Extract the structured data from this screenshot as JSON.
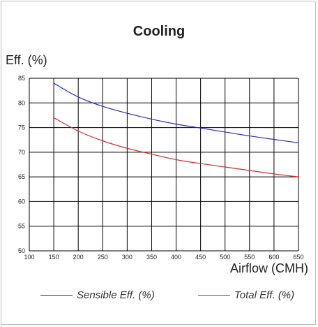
{
  "chart_data": {
    "type": "line",
    "title": "Cooling",
    "ylabel": "Eff. (%)",
    "xlabel": "Airflow (CMH)",
    "xlim": [
      100,
      650
    ],
    "ylim": [
      50,
      85
    ],
    "xticks": [
      100,
      150,
      200,
      250,
      300,
      350,
      400,
      450,
      500,
      550,
      600,
      650
    ],
    "yticks": [
      50,
      55,
      60,
      65,
      70,
      75,
      80,
      85
    ],
    "grid": true,
    "legend": "bottom",
    "series": [
      {
        "name": "Sensible Eff. (%)",
        "color": "#2a2ad4",
        "x": [
          150,
          200,
          250,
          300,
          350,
          400,
          450,
          500,
          550,
          600,
          650
        ],
        "y": [
          84,
          81.2,
          79.3,
          77.9,
          76.7,
          75.7,
          74.9,
          74.1,
          73.3,
          72.6,
          71.9
        ]
      },
      {
        "name": "Total Eff. (%)",
        "color": "#d42a2a",
        "x": [
          150,
          200,
          250,
          300,
          350,
          400,
          450,
          500,
          550,
          600,
          650
        ],
        "y": [
          77,
          74.3,
          72.3,
          70.8,
          69.6,
          68.5,
          67.7,
          67,
          66.3,
          65.6,
          65
        ]
      }
    ]
  }
}
